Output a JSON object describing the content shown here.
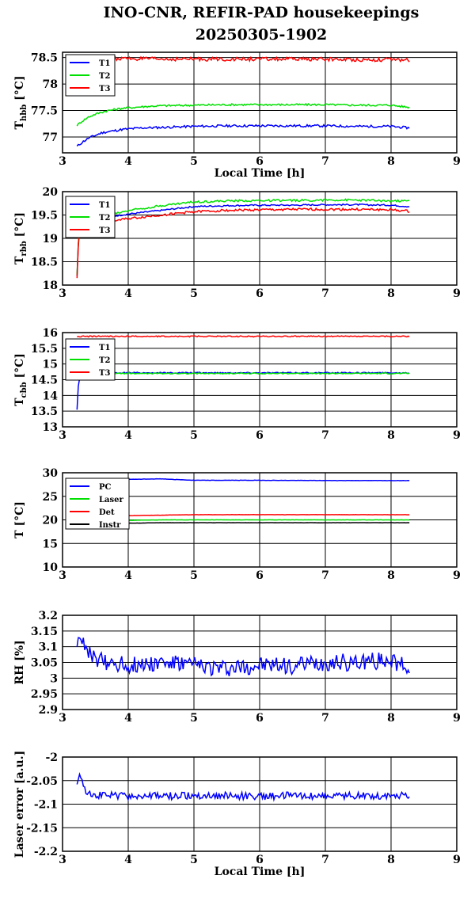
{
  "figure": {
    "title_line1": "INO-CNR, REFIR-PAD housekeepings",
    "title_line2": "20250305-1902"
  },
  "chart_data": [
    {
      "type": "line",
      "ylabel": "T_hbb [°C]",
      "ylabel_main": "T",
      "ylabel_sub": "hbb",
      "ylabel_unit": "[°C]",
      "xlabel": "Local Time [h]",
      "xlim": [
        3,
        9
      ],
      "ylim": [
        76.7,
        78.6
      ],
      "xticks": [
        "3",
        "4",
        "5",
        "6",
        "7",
        "8",
        "9"
      ],
      "yticks": [
        {
          "value": 77,
          "label": "77"
        },
        {
          "value": 77.5,
          "label": "77.5"
        },
        {
          "value": 78,
          "label": "78"
        },
        {
          "value": 78.5,
          "label": "78.5"
        }
      ],
      "grid": true,
      "legend": "top-left",
      "series": [
        {
          "name": "T1",
          "color": "#0000ff",
          "x": [
            3.22,
            3.3,
            3.4,
            3.5,
            3.6,
            3.7,
            3.8,
            3.9,
            4.0,
            4.2,
            4.5,
            5.0,
            5.5,
            6.0,
            6.5,
            7.0,
            7.5,
            8.0,
            8.28
          ],
          "y": [
            76.82,
            76.9,
            76.98,
            77.03,
            77.08,
            77.1,
            77.12,
            77.14,
            77.15,
            77.17,
            77.18,
            77.2,
            77.21,
            77.21,
            77.21,
            77.21,
            77.2,
            77.2,
            77.17
          ],
          "noise": 0.022
        },
        {
          "name": "T2",
          "color": "#00e000",
          "x": [
            3.22,
            3.3,
            3.4,
            3.5,
            3.6,
            3.7,
            3.8,
            3.9,
            4.0,
            4.2,
            4.5,
            5.0,
            5.5,
            6.0,
            6.5,
            7.0,
            7.5,
            8.0,
            8.28
          ],
          "y": [
            77.22,
            77.3,
            77.38,
            77.43,
            77.47,
            77.5,
            77.52,
            77.54,
            77.55,
            77.57,
            77.59,
            77.6,
            77.61,
            77.61,
            77.61,
            77.61,
            77.6,
            77.6,
            77.56
          ],
          "noise": 0.018
        },
        {
          "name": "T3",
          "color": "#ff0000",
          "x": [
            3.22,
            3.3,
            3.5,
            4.0,
            4.5,
            5.0,
            5.5,
            6.0,
            6.5,
            7.0,
            7.5,
            8.0,
            8.28
          ],
          "y": [
            78.48,
            78.48,
            78.48,
            78.48,
            78.47,
            78.47,
            78.47,
            78.47,
            78.47,
            78.47,
            78.46,
            78.46,
            78.45
          ],
          "noise": 0.035
        }
      ]
    },
    {
      "type": "line",
      "ylabel": "T_rbb [°C]",
      "ylabel_main": "T",
      "ylabel_sub": "rbb",
      "ylabel_unit": "[°C]",
      "xlabel": "",
      "xlim": [
        3,
        9
      ],
      "ylim": [
        18,
        20
      ],
      "xticks": [
        "3",
        "4",
        "5",
        "6",
        "7",
        "8",
        "9"
      ],
      "yticks": [
        {
          "value": 18,
          "label": "18"
        },
        {
          "value": 18.5,
          "label": "18.5"
        },
        {
          "value": 19,
          "label": "19"
        },
        {
          "value": 19.5,
          "label": "19.5"
        },
        {
          "value": 20,
          "label": "20"
        }
      ],
      "grid": true,
      "legend": "top-left",
      "series": [
        {
          "name": "T1",
          "color": "#0000ff",
          "x": [
            3.22,
            3.25,
            3.3,
            3.5,
            3.8,
            4.0,
            4.5,
            5.0,
            5.5,
            6.0,
            6.5,
            7.0,
            7.5,
            8.0,
            8.28
          ],
          "y": [
            18.2,
            19.2,
            19.35,
            19.42,
            19.48,
            19.52,
            19.6,
            19.68,
            19.7,
            19.71,
            19.71,
            19.72,
            19.72,
            19.71,
            19.68
          ],
          "noise": 0.015
        },
        {
          "name": "T2",
          "color": "#00e000",
          "x": [
            3.22,
            3.25,
            3.3,
            3.5,
            3.8,
            4.0,
            4.5,
            5.0,
            5.5,
            6.0,
            6.5,
            7.0,
            7.5,
            8.0,
            8.28
          ],
          "y": [
            18.2,
            19.25,
            19.4,
            19.47,
            19.53,
            19.6,
            19.7,
            19.78,
            19.8,
            19.81,
            19.81,
            19.82,
            19.82,
            19.8,
            19.8
          ],
          "noise": 0.022
        },
        {
          "name": "T3",
          "color": "#ff0000",
          "x": [
            3.22,
            3.25,
            3.3,
            3.5,
            3.8,
            4.0,
            4.5,
            5.0,
            5.5,
            6.0,
            6.5,
            7.0,
            7.5,
            8.0,
            8.28
          ],
          "y": [
            18.15,
            19.15,
            19.3,
            19.35,
            19.38,
            19.42,
            19.5,
            19.57,
            19.6,
            19.61,
            19.62,
            19.62,
            19.62,
            19.61,
            19.58
          ],
          "noise": 0.025
        }
      ]
    },
    {
      "type": "line",
      "ylabel": "T_cbb [°C]",
      "ylabel_main": "T",
      "ylabel_sub": "cbb",
      "ylabel_unit": "[°C]",
      "xlabel": "",
      "xlim": [
        3,
        9
      ],
      "ylim": [
        13,
        16
      ],
      "xticks": [
        "3",
        "4",
        "5",
        "6",
        "7",
        "8",
        "9"
      ],
      "yticks": [
        {
          "value": 13,
          "label": "13"
        },
        {
          "value": 13.5,
          "label": "13.5"
        },
        {
          "value": 14,
          "label": "14"
        },
        {
          "value": 14.5,
          "label": "14.5"
        },
        {
          "value": 15,
          "label": "15"
        },
        {
          "value": 15.5,
          "label": "15.5"
        },
        {
          "value": 16,
          "label": "16"
        }
      ],
      "grid": true,
      "legend": "top-left",
      "series": [
        {
          "name": "T1",
          "color": "#0000ff",
          "x": [
            3.22,
            3.24,
            3.27,
            3.3,
            3.5,
            4.0,
            5.0,
            6.0,
            7.0,
            8.0,
            8.28
          ],
          "y": [
            13.55,
            14.3,
            14.68,
            14.72,
            14.72,
            14.72,
            14.72,
            14.72,
            14.72,
            14.72,
            14.72
          ],
          "noise": 0.018
        },
        {
          "name": "T2",
          "color": "#00e000",
          "x": [
            3.22,
            3.24,
            3.27,
            3.3,
            3.5,
            4.0,
            5.0,
            6.0,
            7.0,
            8.0,
            8.28
          ],
          "y": [
            14.5,
            14.6,
            14.68,
            14.7,
            14.7,
            14.7,
            14.7,
            14.7,
            14.7,
            14.7,
            14.7
          ],
          "noise": 0.018
        },
        {
          "name": "T3",
          "color": "#ff0000",
          "x": [
            3.22,
            3.3,
            4.0,
            5.0,
            6.0,
            7.0,
            8.0,
            8.28
          ],
          "y": [
            15.87,
            15.88,
            15.88,
            15.88,
            15.88,
            15.88,
            15.88,
            15.88
          ],
          "noise": 0.018
        }
      ]
    },
    {
      "type": "line",
      "ylabel": "T [°C]",
      "ylabel_main": "T [°C]",
      "ylabel_sub": "",
      "ylabel_unit": "",
      "xlabel": "",
      "xlim": [
        3,
        9
      ],
      "ylim": [
        10,
        30
      ],
      "xticks": [
        "3",
        "4",
        "5",
        "6",
        "7",
        "8",
        "9"
      ],
      "yticks": [
        {
          "value": 10,
          "label": "10"
        },
        {
          "value": 15,
          "label": "15"
        },
        {
          "value": 20,
          "label": "20"
        },
        {
          "value": 25,
          "label": "25"
        },
        {
          "value": 30,
          "label": "30"
        }
      ],
      "grid": true,
      "legend": "top-left",
      "series": [
        {
          "name": "PC",
          "color": "#0000ff",
          "x": [
            3.22,
            3.5,
            4.0,
            4.5,
            5.0,
            6.0,
            7.0,
            8.0,
            8.28
          ],
          "y": [
            28.3,
            28.5,
            28.6,
            28.7,
            28.4,
            28.4,
            28.35,
            28.35,
            28.35
          ],
          "noise": 0.03
        },
        {
          "name": "Laser",
          "color": "#00e000",
          "x": [
            3.22,
            3.5,
            4.0,
            4.5,
            5.0,
            6.0,
            7.0,
            8.0,
            8.28
          ],
          "y": [
            19.3,
            19.6,
            19.9,
            20.0,
            20.0,
            20.0,
            20.0,
            20.0,
            20.0
          ],
          "noise": 0.02
        },
        {
          "name": "Det",
          "color": "#ff0000",
          "x": [
            3.22,
            3.5,
            4.0,
            4.5,
            5.0,
            6.0,
            7.0,
            8.0,
            8.28
          ],
          "y": [
            20.3,
            20.6,
            20.9,
            21.0,
            21.1,
            21.1,
            21.1,
            21.1,
            21.1
          ],
          "noise": 0.02
        },
        {
          "name": "Instr",
          "color": "#000000",
          "x": [
            3.22,
            3.5,
            4.0,
            4.5,
            5.0,
            6.0,
            7.0,
            8.0,
            8.28
          ],
          "y": [
            18.8,
            19.1,
            19.3,
            19.4,
            19.4,
            19.4,
            19.4,
            19.4,
            19.4
          ],
          "noise": 0.02
        }
      ]
    },
    {
      "type": "line",
      "ylabel": "RH [%]",
      "ylabel_main": "RH [%]",
      "ylabel_sub": "",
      "ylabel_unit": "",
      "xlabel": "",
      "xlim": [
        3,
        9
      ],
      "ylim": [
        2.9,
        3.2
      ],
      "xticks": [
        "3",
        "4",
        "5",
        "6",
        "7",
        "8",
        "9"
      ],
      "yticks": [
        {
          "value": 2.9,
          "label": "2.9"
        },
        {
          "value": 2.95,
          "label": "2.95"
        },
        {
          "value": 3,
          "label": "3"
        },
        {
          "value": 3.05,
          "label": "3.05"
        },
        {
          "value": 3.1,
          "label": "3.1"
        },
        {
          "value": 3.15,
          "label": "3.15"
        },
        {
          "value": 3.2,
          "label": "3.2"
        }
      ],
      "grid": true,
      "legend": "none",
      "series": [
        {
          "name": "",
          "color": "#0000ff",
          "x": [
            3.22,
            3.28,
            3.35,
            3.5,
            4.0,
            4.5,
            5.0,
            5.5,
            6.0,
            6.5,
            7.0,
            7.5,
            8.0,
            8.28
          ],
          "y": [
            3.12,
            3.14,
            3.08,
            3.06,
            3.04,
            3.05,
            3.04,
            3.03,
            3.04,
            3.04,
            3.05,
            3.05,
            3.06,
            3.03
          ],
          "noise": 0.028
        }
      ]
    },
    {
      "type": "line",
      "ylabel": "Laser error [a.u.]",
      "ylabel_main": "Laser error [a.u.]",
      "ylabel_sub": "",
      "ylabel_unit": "",
      "xlabel": "Local Time [h]",
      "xlim": [
        3,
        9
      ],
      "ylim": [
        -2.2,
        -2
      ],
      "xticks": [
        "3",
        "4",
        "5",
        "6",
        "7",
        "8",
        "9"
      ],
      "yticks": [
        {
          "value": -2.2,
          "label": "-2.2"
        },
        {
          "value": -2.15,
          "label": "-2.15"
        },
        {
          "value": -2.1,
          "label": "-2.1"
        },
        {
          "value": -2.05,
          "label": "-2.05"
        },
        {
          "value": -2,
          "label": "-2"
        }
      ],
      "grid": true,
      "legend": "none",
      "series": [
        {
          "name": "",
          "color": "#0000ff",
          "x": [
            3.22,
            3.28,
            3.35,
            3.5,
            4.0,
            4.5,
            5.0,
            5.5,
            6.0,
            6.5,
            7.0,
            7.5,
            8.0,
            8.28
          ],
          "y": [
            -2.05,
            -2.04,
            -2.07,
            -2.08,
            -2.083,
            -2.083,
            -2.082,
            -2.082,
            -2.083,
            -2.082,
            -2.082,
            -2.082,
            -2.082,
            -2.08
          ],
          "noise": 0.008
        }
      ]
    }
  ]
}
